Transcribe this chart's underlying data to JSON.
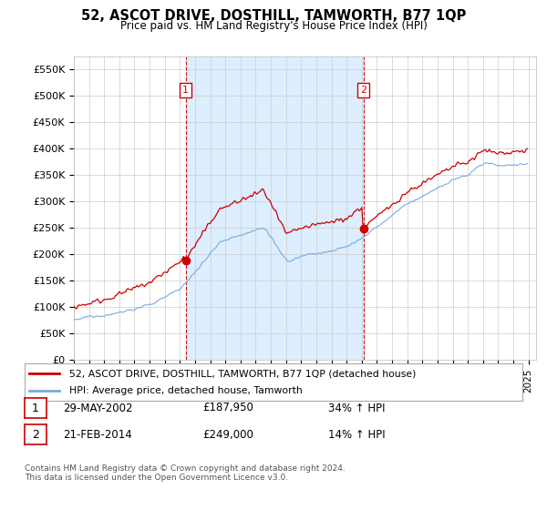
{
  "title": "52, ASCOT DRIVE, DOSTHILL, TAMWORTH, B77 1QP",
  "subtitle": "Price paid vs. HM Land Registry's House Price Index (HPI)",
  "ylabel_ticks": [
    "£0",
    "£50K",
    "£100K",
    "£150K",
    "£200K",
    "£250K",
    "£300K",
    "£350K",
    "£400K",
    "£450K",
    "£500K",
    "£550K"
  ],
  "ytick_values": [
    0,
    50000,
    100000,
    150000,
    200000,
    250000,
    300000,
    350000,
    400000,
    450000,
    500000,
    550000
  ],
  "ylim": [
    0,
    575000
  ],
  "xlim_start": 1995.0,
  "xlim_end": 2025.5,
  "background_color": "#ffffff",
  "grid_color": "#cccccc",
  "sale_color": "#cc0000",
  "hpi_color": "#7aaadd",
  "shade_color": "#ddeeff",
  "vline_color": "#cc0000",
  "sale1_x": 2002.38,
  "sale1_y": 187950,
  "sale2_x": 2014.12,
  "sale2_y": 249000,
  "legend_sale_label": "52, ASCOT DRIVE, DOSTHILL, TAMWORTH, B77 1QP (detached house)",
  "legend_hpi_label": "HPI: Average price, detached house, Tamworth",
  "info1_num": "1",
  "info1_date": "29-MAY-2002",
  "info1_price": "£187,950",
  "info1_hpi": "34% ↑ HPI",
  "info2_num": "2",
  "info2_date": "21-FEB-2014",
  "info2_price": "£249,000",
  "info2_hpi": "14% ↑ HPI",
  "footnote": "Contains HM Land Registry data © Crown copyright and database right 2024.\nThis data is licensed under the Open Government Licence v3.0."
}
